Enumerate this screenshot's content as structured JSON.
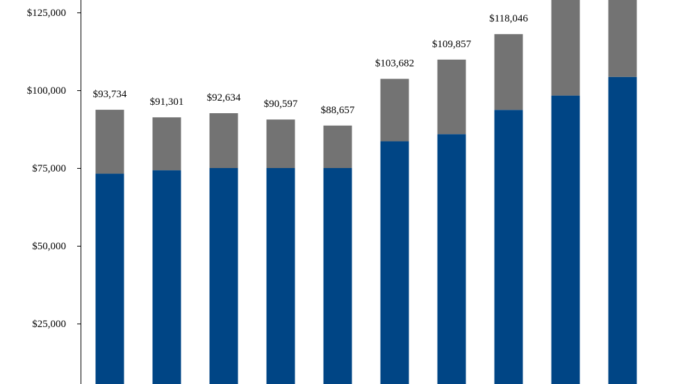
{
  "chart_data": {
    "type": "bar",
    "stacked": true,
    "ylim": [
      0,
      137000
    ],
    "y_ticks": [
      25000,
      50000,
      75000,
      100000,
      125000
    ],
    "y_tick_labels": [
      "$25,000",
      "$50,000",
      "$75,000",
      "$100,000",
      "$125,000"
    ],
    "grid": false,
    "legend": "none",
    "series": [
      {
        "color": "#004585",
        "values": [
          73200,
          74300,
          75000,
          75000,
          75000,
          83600,
          85900,
          93700,
          98300,
          104300
        ]
      },
      {
        "color": "#737373",
        "values": [
          20534,
          17001,
          17634,
          15597,
          13657,
          20082,
          23957,
          24346,
          40000,
          40000
        ]
      }
    ],
    "totals_labels": [
      "$93,734",
      "$91,301",
      "$92,634",
      "$90,597",
      "$88,657",
      "$103,682",
      "$109,857",
      "$118,046",
      "",
      ""
    ]
  }
}
